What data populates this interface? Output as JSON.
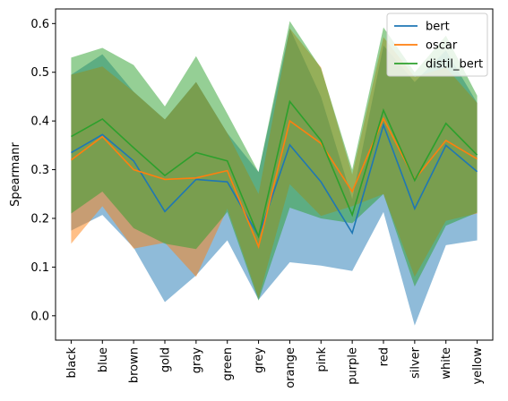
{
  "chart_data": {
    "type": "line",
    "title": "",
    "xlabel": "",
    "ylabel": "Spearmanr",
    "categories": [
      "black",
      "blue",
      "brown",
      "gold",
      "gray",
      "green",
      "grey",
      "orange",
      "pink",
      "purple",
      "red",
      "silver",
      "white",
      "yellow"
    ],
    "ylim": [
      -0.05,
      0.63
    ],
    "yticks": [
      0.0,
      0.1,
      0.2,
      0.3,
      0.4,
      0.5,
      0.6
    ],
    "ytick_labels": [
      "0.0",
      "0.1",
      "0.2",
      "0.3",
      "0.4",
      "0.5",
      "0.6"
    ],
    "grid": false,
    "legend_position": "top-right",
    "series": [
      {
        "name": "bert",
        "color": "#1f77b4",
        "values": [
          0.335,
          0.372,
          0.318,
          0.214,
          0.28,
          0.275,
          0.163,
          0.351,
          0.275,
          0.17,
          0.392,
          0.22,
          0.35,
          0.296
        ],
        "upper": [
          0.495,
          0.537,
          0.46,
          0.403,
          0.48,
          0.375,
          0.295,
          0.59,
          0.45,
          0.24,
          0.555,
          0.48,
          0.545,
          0.437
        ],
        "lower": [
          0.175,
          0.207,
          0.14,
          0.028,
          0.083,
          0.155,
          0.033,
          0.11,
          0.103,
          0.092,
          0.213,
          -0.02,
          0.145,
          0.155
        ]
      },
      {
        "name": "oscar",
        "color": "#ff7f0e",
        "values": [
          0.32,
          0.368,
          0.3,
          0.28,
          0.283,
          0.298,
          0.142,
          0.4,
          0.354,
          0.255,
          0.405,
          0.28,
          0.36,
          0.322
        ],
        "upper": [
          0.495,
          0.512,
          0.46,
          0.403,
          0.48,
          0.375,
          0.25,
          0.59,
          0.51,
          0.29,
          0.572,
          0.49,
          0.51,
          0.437
        ],
        "lower": [
          0.148,
          0.225,
          0.138,
          0.15,
          0.08,
          0.22,
          0.036,
          0.27,
          0.205,
          0.225,
          0.25,
          0.08,
          0.195,
          0.21
        ]
      },
      {
        "name": "distil_bert",
        "color": "#2ca02c",
        "values": [
          0.368,
          0.404,
          0.345,
          0.288,
          0.335,
          0.318,
          0.163,
          0.44,
          0.36,
          0.207,
          0.422,
          0.278,
          0.395,
          0.33
        ],
        "upper": [
          0.53,
          0.55,
          0.515,
          0.43,
          0.533,
          0.415,
          0.295,
          0.605,
          0.508,
          0.3,
          0.592,
          0.5,
          0.575,
          0.452
        ],
        "lower": [
          0.21,
          0.255,
          0.18,
          0.148,
          0.137,
          0.213,
          0.031,
          0.222,
          0.2,
          0.19,
          0.25,
          0.06,
          0.185,
          0.212
        ]
      }
    ]
  }
}
